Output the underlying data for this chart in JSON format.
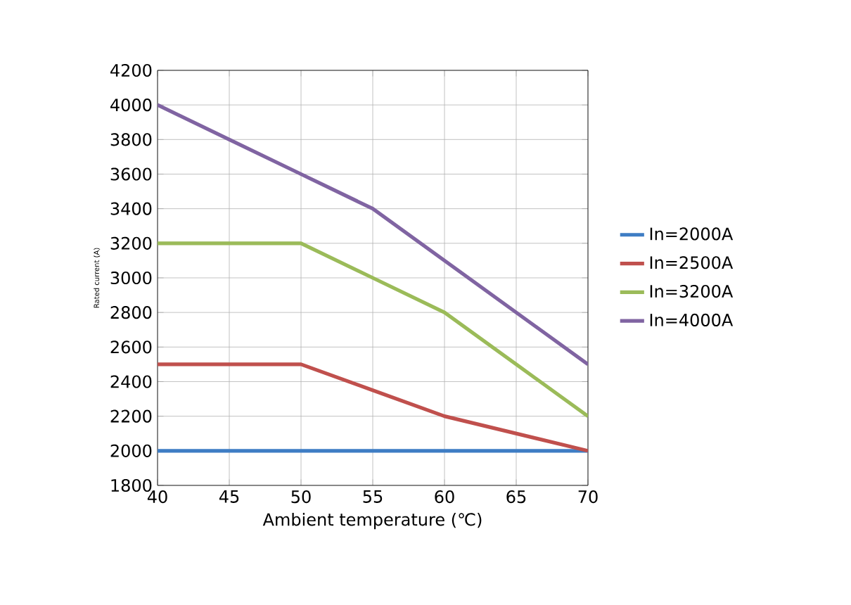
{
  "chart_data": {
    "type": "line",
    "xlabel": "Ambient temperature (℃)",
    "ylabel": "Rated current (A)",
    "x": [
      40,
      45,
      50,
      55,
      60,
      65,
      70
    ],
    "series": [
      {
        "name": "In=2000A",
        "color": "#3e7dc4",
        "values": [
          2000,
          2000,
          2000,
          2000,
          2000,
          2000,
          2000
        ]
      },
      {
        "name": "In=2500A",
        "color": "#c0504d",
        "values": [
          2500,
          2500,
          2500,
          2350,
          2200,
          2100,
          2000
        ]
      },
      {
        "name": "In=3200A",
        "color": "#9bbb59",
        "values": [
          3200,
          3200,
          3200,
          3000,
          2800,
          2500,
          2200
        ]
      },
      {
        "name": "In=4000A",
        "color": "#8064a2",
        "values": [
          4000,
          3800,
          3600,
          3400,
          3100,
          2800,
          2500
        ]
      }
    ],
    "xlim": [
      40,
      70
    ],
    "xticks": [
      40,
      45,
      50,
      55,
      60,
      65,
      70
    ],
    "ylim": [
      1800,
      4200
    ],
    "yticks": [
      1800,
      2000,
      2200,
      2400,
      2600,
      2800,
      3000,
      3200,
      3400,
      3600,
      3800,
      4000,
      4200
    ],
    "grid": true,
    "legend": "right"
  }
}
